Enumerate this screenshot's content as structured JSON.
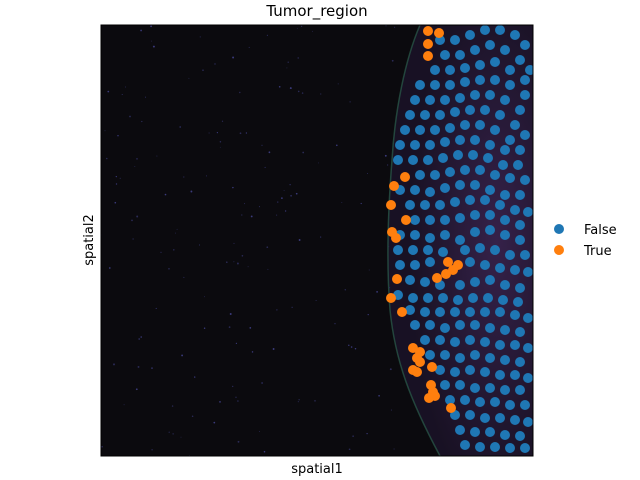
{
  "chart_data": {
    "type": "scatter",
    "title": "Tumor_region",
    "xlabel": "spatial1",
    "ylabel": "spatial2",
    "x_ticks": [],
    "y_ticks": [],
    "background": "tissue microscopy image (dark)",
    "legend": {
      "placement": "right",
      "entries": [
        {
          "label": "False",
          "color": "#1f77b4"
        },
        {
          "label": "True",
          "color": "#ff7f0e"
        }
      ]
    },
    "series": [
      {
        "name": "True",
        "color": "#ff7f0e",
        "points": [
          [
            428,
            31
          ],
          [
            439,
            33
          ],
          [
            428,
            44
          ],
          [
            428,
            56
          ],
          [
            405,
            177
          ],
          [
            394,
            186
          ],
          [
            391,
            205
          ],
          [
            406,
            220
          ],
          [
            392,
            232
          ],
          [
            396,
            238
          ],
          [
            448,
            262
          ],
          [
            458,
            265
          ],
          [
            453,
            270
          ],
          [
            446,
            274
          ],
          [
            437,
            278
          ],
          [
            397,
            279
          ],
          [
            391,
            298
          ],
          [
            402,
            312
          ],
          [
            413,
            348
          ],
          [
            420,
            352
          ],
          [
            417,
            358
          ],
          [
            420,
            362
          ],
          [
            432,
            367
          ],
          [
            413,
            370
          ],
          [
            417,
            372
          ],
          [
            431,
            385
          ],
          [
            433,
            392
          ],
          [
            435,
            396
          ],
          [
            429,
            398
          ],
          [
            451,
            408
          ]
        ]
      },
      {
        "name": "False",
        "color": "#1f77b4",
        "points": [
          [
            440,
            40
          ],
          [
            455,
            40
          ],
          [
            470,
            35
          ],
          [
            485,
            30
          ],
          [
            500,
            30
          ],
          [
            515,
            35
          ],
          [
            525,
            45
          ],
          [
            445,
            55
          ],
          [
            460,
            55
          ],
          [
            475,
            50
          ],
          [
            490,
            45
          ],
          [
            505,
            50
          ],
          [
            520,
            60
          ],
          [
            530,
            70
          ],
          [
            435,
            70
          ],
          [
            450,
            70
          ],
          [
            465,
            68
          ],
          [
            480,
            65
          ],
          [
            495,
            62
          ],
          [
            510,
            70
          ],
          [
            525,
            80
          ],
          [
            420,
            85
          ],
          [
            435,
            85
          ],
          [
            450,
            85
          ],
          [
            465,
            82
          ],
          [
            480,
            80
          ],
          [
            495,
            80
          ],
          [
            510,
            85
          ],
          [
            525,
            95
          ],
          [
            415,
            100
          ],
          [
            430,
            100
          ],
          [
            445,
            100
          ],
          [
            460,
            98
          ],
          [
            475,
            95
          ],
          [
            490,
            95
          ],
          [
            505,
            100
          ],
          [
            520,
            110
          ],
          [
            410,
            115
          ],
          [
            425,
            115
          ],
          [
            440,
            115
          ],
          [
            455,
            112
          ],
          [
            470,
            110
          ],
          [
            485,
            110
          ],
          [
            500,
            115
          ],
          [
            515,
            125
          ],
          [
            405,
            130
          ],
          [
            420,
            130
          ],
          [
            435,
            130
          ],
          [
            450,
            128
          ],
          [
            465,
            125
          ],
          [
            480,
            125
          ],
          [
            495,
            130
          ],
          [
            510,
            140
          ],
          [
            525,
            135
          ],
          [
            400,
            145
          ],
          [
            415,
            145
          ],
          [
            430,
            145
          ],
          [
            445,
            142
          ],
          [
            460,
            140
          ],
          [
            475,
            140
          ],
          [
            490,
            145
          ],
          [
            505,
            150
          ],
          [
            520,
            150
          ],
          [
            398,
            160
          ],
          [
            413,
            160
          ],
          [
            428,
            160
          ],
          [
            443,
            158
          ],
          [
            458,
            155
          ],
          [
            473,
            155
          ],
          [
            488,
            158
          ],
          [
            503,
            165
          ],
          [
            518,
            165
          ],
          [
            420,
            175
          ],
          [
            435,
            175
          ],
          [
            450,
            172
          ],
          [
            465,
            170
          ],
          [
            480,
            170
          ],
          [
            495,
            175
          ],
          [
            510,
            178
          ],
          [
            525,
            180
          ],
          [
            400,
            190
          ],
          [
            415,
            190
          ],
          [
            430,
            192
          ],
          [
            445,
            188
          ],
          [
            460,
            185
          ],
          [
            475,
            185
          ],
          [
            490,
            190
          ],
          [
            505,
            195
          ],
          [
            520,
            195
          ],
          [
            410,
            205
          ],
          [
            425,
            205
          ],
          [
            440,
            205
          ],
          [
            455,
            202
          ],
          [
            470,
            200
          ],
          [
            485,
            200
          ],
          [
            500,
            205
          ],
          [
            515,
            210
          ],
          [
            528,
            212
          ],
          [
            415,
            220
          ],
          [
            430,
            220
          ],
          [
            445,
            220
          ],
          [
            460,
            218
          ],
          [
            475,
            215
          ],
          [
            490,
            215
          ],
          [
            505,
            220
          ],
          [
            520,
            225
          ],
          [
            400,
            235
          ],
          [
            415,
            235
          ],
          [
            430,
            238
          ],
          [
            445,
            235
          ],
          [
            460,
            240
          ],
          [
            475,
            232
          ],
          [
            490,
            230
          ],
          [
            505,
            235
          ],
          [
            520,
            240
          ],
          [
            398,
            250
          ],
          [
            413,
            250
          ],
          [
            428,
            250
          ],
          [
            443,
            252
          ],
          [
            465,
            250
          ],
          [
            480,
            248
          ],
          [
            495,
            250
          ],
          [
            510,
            255
          ],
          [
            525,
            255
          ],
          [
            400,
            265
          ],
          [
            415,
            265
          ],
          [
            430,
            262
          ],
          [
            470,
            262
          ],
          [
            485,
            265
          ],
          [
            500,
            268
          ],
          [
            515,
            270
          ],
          [
            528,
            272
          ],
          [
            410,
            280
          ],
          [
            425,
            282
          ],
          [
            440,
            285
          ],
          [
            460,
            285
          ],
          [
            475,
            282
          ],
          [
            490,
            280
          ],
          [
            505,
            285
          ],
          [
            520,
            288
          ],
          [
            398,
            295
          ],
          [
            413,
            298
          ],
          [
            428,
            298
          ],
          [
            443,
            298
          ],
          [
            458,
            300
          ],
          [
            473,
            298
          ],
          [
            488,
            298
          ],
          [
            503,
            300
          ],
          [
            518,
            302
          ],
          [
            410,
            310
          ],
          [
            425,
            312
          ],
          [
            440,
            312
          ],
          [
            455,
            312
          ],
          [
            470,
            312
          ],
          [
            485,
            312
          ],
          [
            500,
            312
          ],
          [
            515,
            315
          ],
          [
            528,
            318
          ],
          [
            415,
            325
          ],
          [
            430,
            325
          ],
          [
            445,
            328
          ],
          [
            460,
            325
          ],
          [
            475,
            325
          ],
          [
            490,
            328
          ],
          [
            505,
            330
          ],
          [
            520,
            332
          ],
          [
            425,
            340
          ],
          [
            440,
            340
          ],
          [
            455,
            342
          ],
          [
            470,
            340
          ],
          [
            485,
            342
          ],
          [
            500,
            345
          ],
          [
            515,
            345
          ],
          [
            528,
            348
          ],
          [
            430,
            355
          ],
          [
            445,
            355
          ],
          [
            460,
            358
          ],
          [
            475,
            355
          ],
          [
            490,
            358
          ],
          [
            505,
            360
          ],
          [
            520,
            362
          ],
          [
            440,
            370
          ],
          [
            455,
            372
          ],
          [
            470,
            370
          ],
          [
            485,
            372
          ],
          [
            500,
            375
          ],
          [
            515,
            375
          ],
          [
            528,
            378
          ],
          [
            445,
            385
          ],
          [
            460,
            385
          ],
          [
            475,
            388
          ],
          [
            490,
            388
          ],
          [
            505,
            390
          ],
          [
            520,
            390
          ],
          [
            450,
            400
          ],
          [
            465,
            400
          ],
          [
            480,
            402
          ],
          [
            495,
            402
          ],
          [
            510,
            405
          ],
          [
            525,
            405
          ],
          [
            455,
            415
          ],
          [
            470,
            415
          ],
          [
            485,
            418
          ],
          [
            500,
            418
          ],
          [
            515,
            420
          ],
          [
            528,
            422
          ],
          [
            460,
            430
          ],
          [
            475,
            432
          ],
          [
            490,
            432
          ],
          [
            505,
            435
          ],
          [
            520,
            436
          ],
          [
            465,
            445
          ],
          [
            480,
            447
          ],
          [
            495,
            447
          ],
          [
            510,
            448
          ],
          [
            525,
            448
          ]
        ]
      }
    ]
  }
}
